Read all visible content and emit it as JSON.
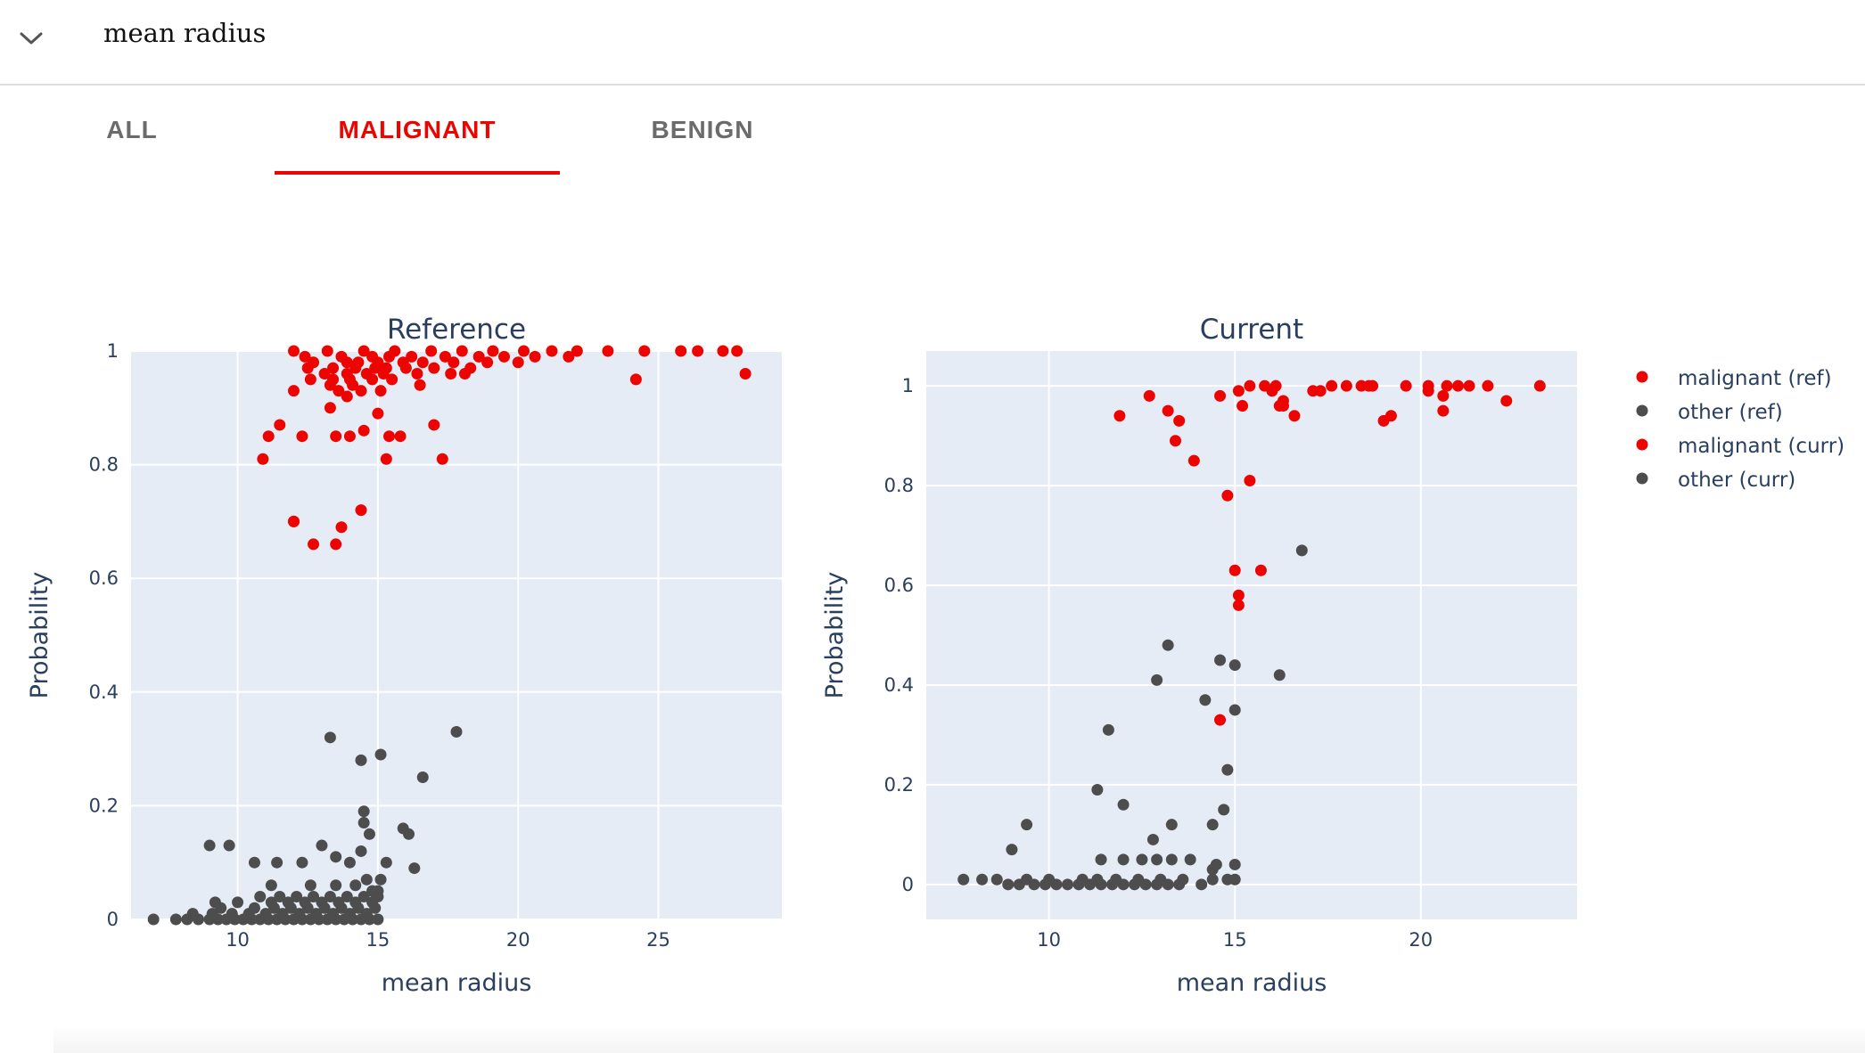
{
  "header": {
    "title": "mean radius",
    "toggle_icon": "chevron-down-icon"
  },
  "tabs": [
    {
      "label": "ALL",
      "active": false
    },
    {
      "label": "MALIGNANT",
      "active": true
    },
    {
      "label": "BENIGN",
      "active": false
    }
  ],
  "colors": {
    "accent": "#ed0400",
    "malignant": "#ed0400",
    "other": "#4d4d4d",
    "plot_bg": "#e5ecf6",
    "text": "#2a3f5f"
  },
  "legend": {
    "placement": "right",
    "entries": [
      "malignant (ref)",
      "other (ref)",
      "malignant (curr)",
      "other (curr)"
    ]
  },
  "chart_data": [
    {
      "type": "scatter",
      "title": "Reference",
      "xlabel": "mean radius",
      "ylabel": "Probability",
      "xlim": [
        6.2,
        29.4
      ],
      "ylim": [
        0,
        1
      ],
      "xticks": [
        10,
        15,
        20,
        25
      ],
      "yticks": [
        0,
        0.2,
        0.4,
        0.6,
        0.8,
        1
      ],
      "ytick_labels": [
        "0",
        "0.2",
        "0.4",
        "0.6",
        "0.8",
        "1"
      ],
      "grid": true,
      "series": [
        {
          "name": "malignant (ref)",
          "color": "#ed0400",
          "x": [
            12.0,
            13.2,
            14.5,
            15.6,
            16.9,
            18.0,
            19.1,
            20.2,
            21.2,
            22.1,
            23.2,
            24.5,
            25.8,
            26.4,
            27.3,
            27.8,
            12.4,
            13.7,
            14.8,
            15.4,
            16.2,
            17.4,
            18.6,
            19.5,
            20.6,
            21.8,
            12.7,
            13.9,
            14.3,
            15.0,
            15.9,
            16.6,
            17.7,
            18.9,
            20.0,
            12.5,
            13.4,
            14.2,
            14.9,
            15.3,
            16.0,
            17.0,
            18.3,
            13.1,
            13.9,
            14.6,
            15.2,
            16.4,
            17.6,
            18.1,
            12.6,
            13.4,
            14.0,
            14.8,
            15.5,
            13.3,
            14.1,
            16.5,
            13.6,
            14.4,
            15.1,
            12.0,
            13.9,
            11.1,
            11.5,
            12.3,
            13.5,
            15.4,
            17.0,
            14.0,
            14.5,
            15.8,
            13.3,
            15.0,
            15.3,
            17.3,
            10.9,
            12.0,
            14.4,
            12.0,
            13.7,
            12.7,
            13.5,
            24.2,
            28.1
          ],
          "y": [
            1,
            1,
            1,
            1,
            1,
            1,
            1,
            1,
            1,
            1,
            1,
            1,
            1,
            1,
            1,
            1,
            0.99,
            0.99,
            0.99,
            0.99,
            0.99,
            0.99,
            0.99,
            0.99,
            0.99,
            0.99,
            0.98,
            0.98,
            0.98,
            0.98,
            0.98,
            0.98,
            0.98,
            0.98,
            0.98,
            0.97,
            0.97,
            0.97,
            0.97,
            0.97,
            0.97,
            0.97,
            0.97,
            0.96,
            0.96,
            0.96,
            0.96,
            0.96,
            0.96,
            0.96,
            0.95,
            0.95,
            0.95,
            0.95,
            0.95,
            0.94,
            0.94,
            0.94,
            0.93,
            0.93,
            0.93,
            0.93,
            0.92,
            0.85,
            0.87,
            0.85,
            0.85,
            0.85,
            0.87,
            0.85,
            0.86,
            0.85,
            0.9,
            0.89,
            0.81,
            0.81,
            0.81,
            0.7,
            0.72,
            0.7,
            0.69,
            0.66,
            0.66,
            0.95,
            0.96
          ]
        },
        {
          "name": "other (ref)",
          "color": "#4d4d4d",
          "x": [
            7.0,
            7.8,
            8.2,
            8.6,
            9.0,
            9.3,
            9.6,
            9.9,
            10.2,
            10.5,
            10.8,
            11.1,
            11.4,
            11.7,
            12.0,
            12.3,
            12.6,
            12.9,
            13.2,
            13.5,
            13.8,
            14.1,
            14.4,
            14.7,
            15.0,
            9.1,
            9.8,
            10.4,
            11.0,
            11.6,
            12.2,
            12.8,
            13.4,
            14.0,
            14.6,
            8.4,
            9.4,
            10.6,
            11.3,
            11.9,
            12.5,
            13.1,
            13.7,
            14.3,
            14.9,
            9.2,
            10.0,
            11.2,
            11.8,
            12.4,
            13.0,
            13.6,
            14.2,
            14.8,
            10.8,
            11.5,
            12.1,
            12.7,
            13.3,
            13.9,
            14.5,
            15.0,
            11.2,
            12.6,
            13.5,
            14.2,
            14.8,
            14.6,
            15.1,
            9.0,
            9.7,
            10.6,
            11.4,
            12.3,
            13.0,
            13.5,
            14.4,
            14.0,
            14.7,
            15.3,
            15.0,
            16.3,
            13.3,
            15.1,
            14.4,
            14.5,
            15.9,
            16.1,
            16.6,
            14.5,
            17.8
          ],
          "y": [
            0,
            0,
            0,
            0,
            0,
            0,
            0,
            0,
            0,
            0,
            0,
            0,
            0,
            0,
            0,
            0,
            0,
            0,
            0,
            0,
            0,
            0,
            0,
            0,
            0,
            0.01,
            0.01,
            0.01,
            0.01,
            0.01,
            0.01,
            0.01,
            0.01,
            0.01,
            0.01,
            0.01,
            0.02,
            0.02,
            0.02,
            0.02,
            0.02,
            0.02,
            0.02,
            0.02,
            0.02,
            0.03,
            0.03,
            0.03,
            0.03,
            0.03,
            0.03,
            0.03,
            0.03,
            0.03,
            0.04,
            0.04,
            0.04,
            0.04,
            0.04,
            0.04,
            0.04,
            0.04,
            0.06,
            0.06,
            0.06,
            0.06,
            0.05,
            0.07,
            0.07,
            0.13,
            0.13,
            0.1,
            0.1,
            0.1,
            0.13,
            0.11,
            0.12,
            0.1,
            0.15,
            0.1,
            0.05,
            0.09,
            0.32,
            0.29,
            0.28,
            0.19,
            0.16,
            0.15,
            0.25,
            0.17,
            0.33
          ]
        }
      ]
    },
    {
      "type": "scatter",
      "title": "Current",
      "xlabel": "mean radius",
      "ylabel": "Probability",
      "xlim": [
        6.7,
        24.2
      ],
      "ylim": [
        -0.07,
        1.07
      ],
      "xticks": [
        10,
        15,
        20
      ],
      "yticks": [
        0,
        0.2,
        0.4,
        0.6,
        0.8,
        1
      ],
      "ytick_labels": [
        "0",
        "0.2",
        "0.4",
        "0.6",
        "0.8",
        "1"
      ],
      "grid": true,
      "series": [
        {
          "name": "malignant (curr)",
          "color": "#ed0400",
          "x": [
            11.9,
            12.7,
            13.2,
            13.5,
            13.4,
            13.9,
            14.6,
            15.1,
            15.4,
            15.8,
            16.1,
            16.3,
            15.2,
            16.2,
            16.6,
            17.3,
            17.6,
            18.0,
            18.4,
            18.7,
            19.2,
            19.6,
            20.2,
            20.7,
            21.0,
            21.3,
            21.8,
            22.3,
            20.6,
            19.0,
            18.6,
            23.2,
            16.0,
            17.1,
            16.3,
            20.2,
            20.6,
            15.4,
            15.0,
            15.1,
            15.7,
            15.1,
            14.8,
            14.6
          ],
          "y": [
            0.94,
            0.98,
            0.95,
            0.93,
            0.89,
            0.85,
            0.98,
            0.99,
            1.0,
            1.0,
            1.0,
            0.97,
            0.96,
            0.96,
            0.94,
            0.99,
            1.0,
            1.0,
            1.0,
            1.0,
            0.94,
            1.0,
            1.0,
            1.0,
            1.0,
            1.0,
            1.0,
            0.97,
            0.95,
            0.93,
            1.0,
            1.0,
            0.99,
            0.99,
            0.96,
            0.99,
            0.98,
            0.81,
            0.63,
            0.58,
            0.63,
            0.56,
            0.78,
            0.33
          ]
        },
        {
          "name": "other (curr)",
          "color": "#4d4d4d",
          "x": [
            7.7,
            8.2,
            8.6,
            8.9,
            9.2,
            9.6,
            9.9,
            10.2,
            10.5,
            10.8,
            11.1,
            11.4,
            11.7,
            12.0,
            12.3,
            12.6,
            12.9,
            13.2,
            13.5,
            14.1,
            14.8,
            9.4,
            10.0,
            10.9,
            11.3,
            11.8,
            12.4,
            13.0,
            13.6,
            14.4,
            15.0,
            11.4,
            12.0,
            12.5,
            12.9,
            13.3,
            13.8,
            14.5,
            15.0,
            9.0,
            9.4,
            12.0,
            13.3,
            12.8,
            14.4,
            11.3,
            11.6,
            14.7,
            14.8,
            14.2,
            14.6,
            15.0,
            15.0,
            13.2,
            12.9,
            14.4,
            16.2,
            16.8
          ],
          "y": [
            0.01,
            0.01,
            0.01,
            0,
            0,
            0,
            0,
            0,
            0,
            0,
            0,
            0,
            0,
            0,
            0,
            0,
            0,
            0,
            0,
            0,
            0.01,
            0.01,
            0.01,
            0.01,
            0.01,
            0.01,
            0.01,
            0.01,
            0.01,
            0.01,
            0.01,
            0.05,
            0.05,
            0.05,
            0.05,
            0.05,
            0.05,
            0.04,
            0.04,
            0.07,
            0.12,
            0.16,
            0.12,
            0.09,
            0.12,
            0.19,
            0.31,
            0.15,
            0.23,
            0.37,
            0.45,
            0.44,
            0.35,
            0.48,
            0.41,
            0.03,
            0.42,
            0.67
          ]
        }
      ]
    }
  ]
}
